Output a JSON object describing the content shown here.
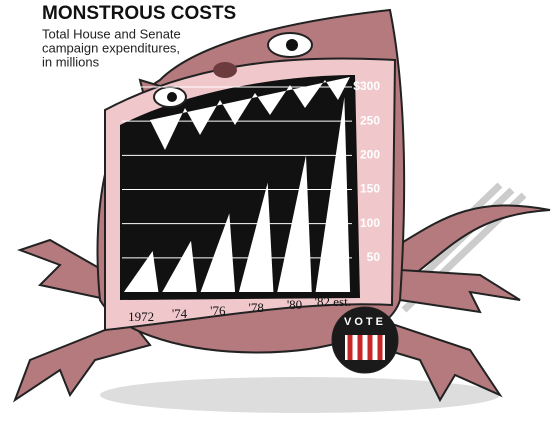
{
  "chart_data": {
    "type": "bar",
    "title": "MONSTROUS COSTS",
    "subtitle": [
      "Total House and Senate",
      "campaign expenditures,",
      "in millions"
    ],
    "badge": "VOTE",
    "categories": [
      "1972",
      "'74",
      "'76",
      "'78",
      "'80",
      "'82 est."
    ],
    "values": [
      60,
      75,
      115,
      160,
      200,
      285
    ],
    "color": "#ffffff",
    "ylim": [
      0,
      300
    ],
    "yticks": [
      50,
      100,
      150,
      200,
      250,
      {
        "value": 300,
        "label": "$300"
      }
    ],
    "grid": true
  }
}
